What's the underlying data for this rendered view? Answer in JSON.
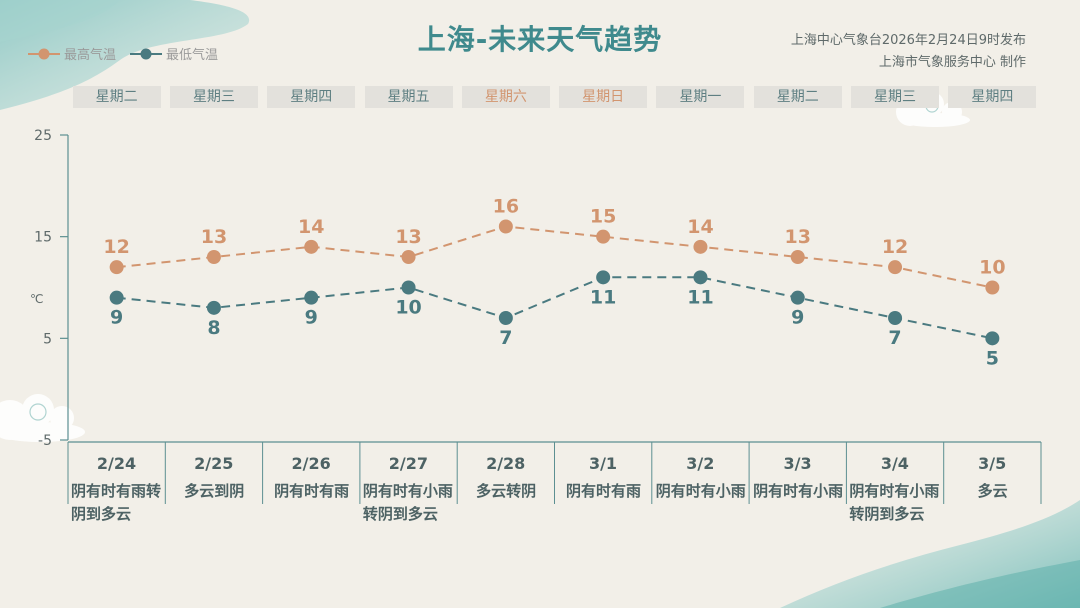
{
  "header": {
    "title": "上海-未来天气趋势",
    "issuer": "上海中心气象台2026年2月24日9时发布",
    "producer": "上海市气象服务中心  制作"
  },
  "legend": {
    "high_label": "最高气温",
    "low_label": "最低气温"
  },
  "days": [
    {
      "weekday": "星期二",
      "date": "2/24",
      "weather": "阴有时有雨转阴到多云",
      "weekend": false
    },
    {
      "weekday": "星期三",
      "date": "2/25",
      "weather": "多云到阴",
      "weekend": false
    },
    {
      "weekday": "星期四",
      "date": "2/26",
      "weather": "阴有时有雨",
      "weekend": false
    },
    {
      "weekday": "星期五",
      "date": "2/27",
      "weather": "阴有时有小雨转阴到多云",
      "weekend": false
    },
    {
      "weekday": "星期六",
      "date": "2/28",
      "weather": "多云转阴",
      "weekend": true
    },
    {
      "weekday": "星期日",
      "date": "3/1",
      "weather": "阴有时有雨",
      "weekend": true
    },
    {
      "weekday": "星期一",
      "date": "3/2",
      "weather": "阴有时有小雨",
      "weekend": false
    },
    {
      "weekday": "星期二",
      "date": "3/3",
      "weather": "阴有时有小雨",
      "weekend": false
    },
    {
      "weekday": "星期三",
      "date": "3/4",
      "weather": "阴有时有小雨转阴到多云",
      "weekend": false
    },
    {
      "weekday": "星期四",
      "date": "3/5",
      "weather": "多云",
      "weekend": false
    }
  ],
  "chart_data": {
    "type": "line",
    "categories": [
      "2/24",
      "2/25",
      "2/26",
      "2/27",
      "2/28",
      "3/1",
      "3/2",
      "3/3",
      "3/4",
      "3/5"
    ],
    "series": [
      {
        "name": "最高气温",
        "values": [
          12,
          13,
          14,
          13,
          16,
          15,
          14,
          13,
          12,
          10
        ],
        "color": "#d2956f"
      },
      {
        "name": "最低气温",
        "values": [
          9,
          8,
          9,
          10,
          7,
          11,
          11,
          9,
          7,
          5
        ],
        "color": "#4a7a80"
      }
    ],
    "ylim": [
      -5,
      25
    ],
    "yticks": [
      25,
      15,
      5,
      -5
    ],
    "ylabel": "℃",
    "line_style": "dashed",
    "grid": false,
    "legend_position": "top-left"
  },
  "colors": {
    "high": "#d2956f",
    "low": "#4a7a80",
    "title": "#3f8a8d",
    "axis": "#5c8f91"
  }
}
